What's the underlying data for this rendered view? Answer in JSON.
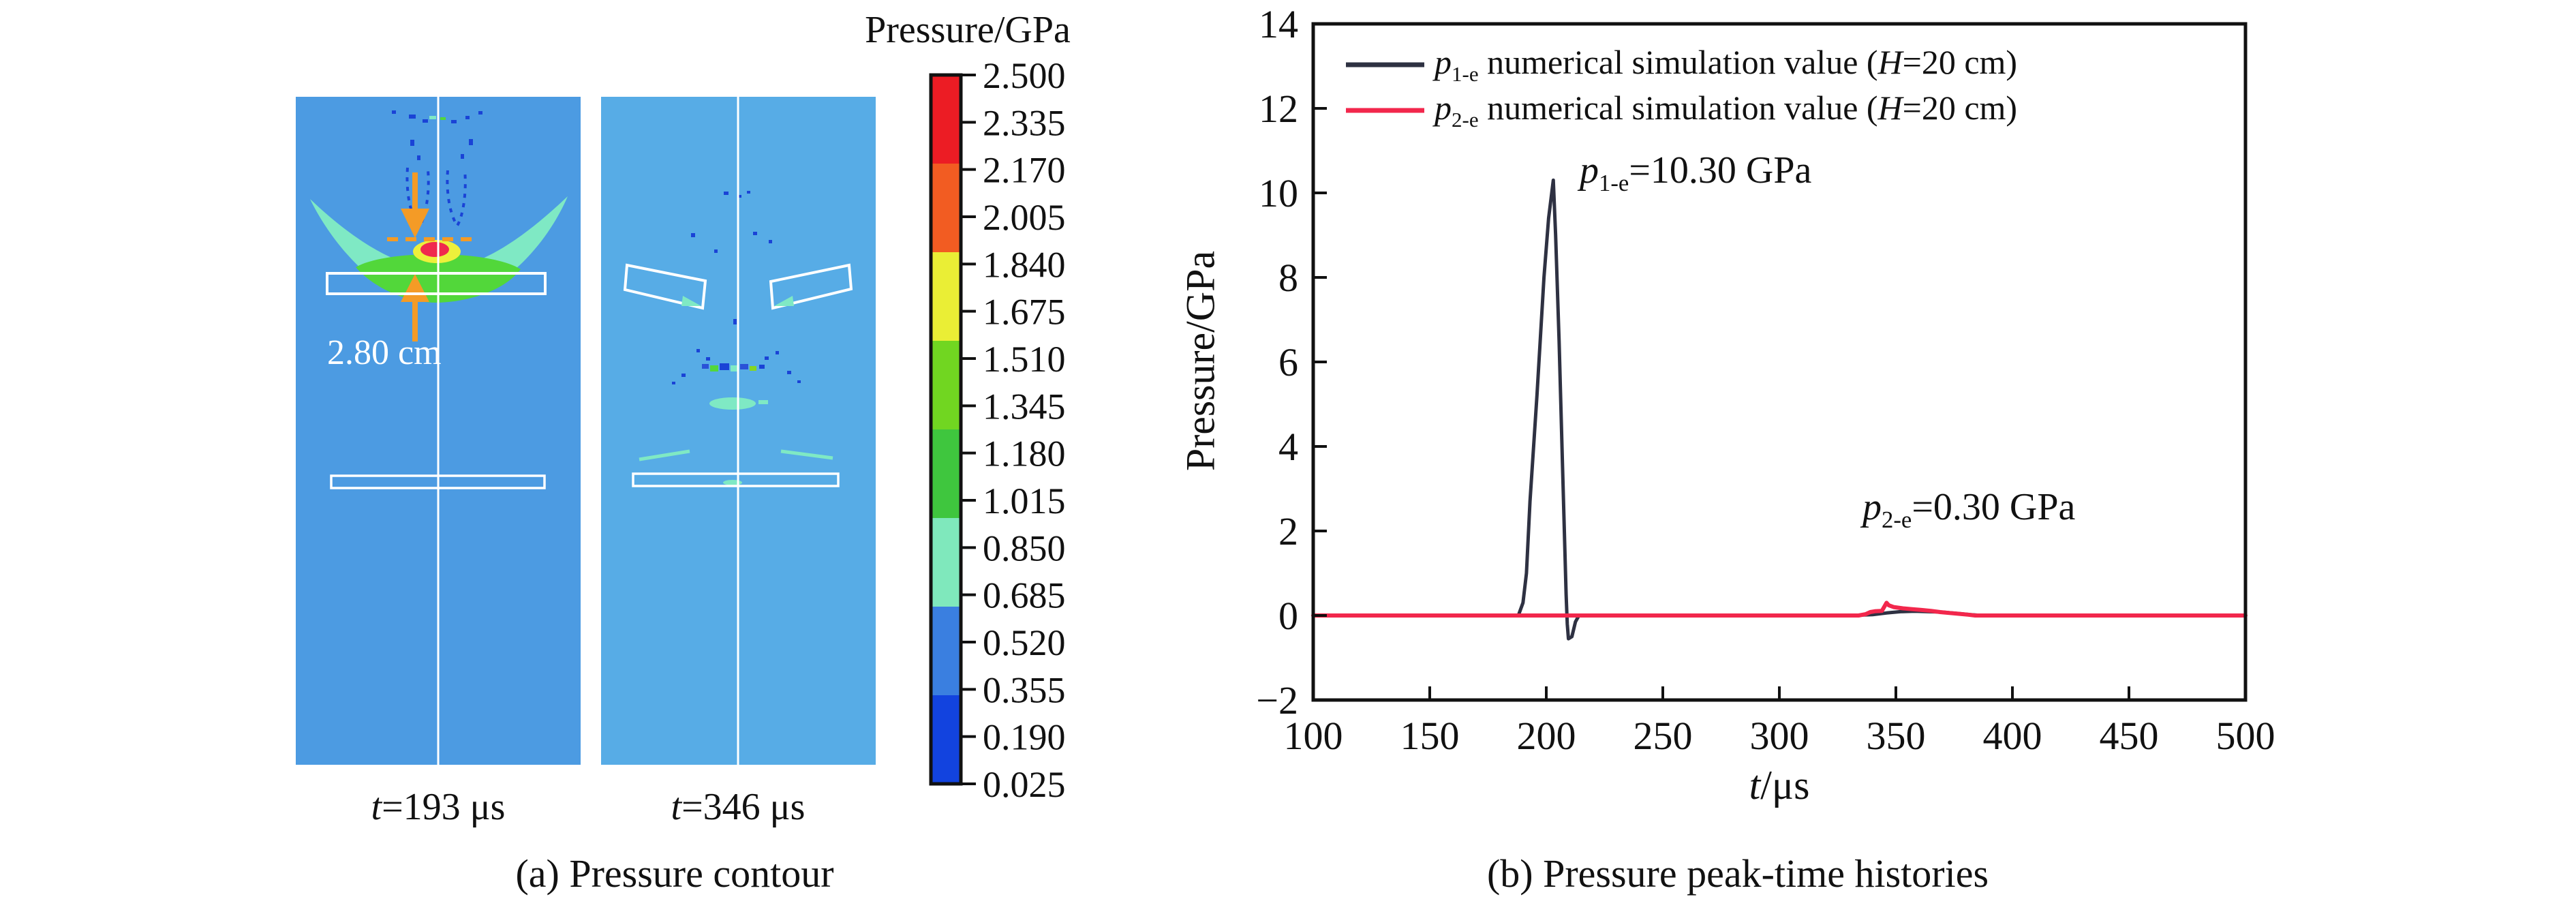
{
  "figure": {
    "panel_a": {
      "caption": "(a) Pressure contour",
      "dimension_label": "2.80 cm",
      "snapshots": [
        {
          "t_var": "t",
          "t_rest": "=193 μs"
        },
        {
          "t_var": "t",
          "t_rest": "=346 μs"
        }
      ],
      "colorbar": {
        "title": "Pressure/GPa",
        "tick_labels": [
          "2.500",
          "2.335",
          "2.170",
          "2.005",
          "1.840",
          "1.675",
          "1.510",
          "1.345",
          "1.180",
          "1.015",
          "0.850",
          "0.685",
          "0.520",
          "0.355",
          "0.190",
          "0.025"
        ],
        "segment_colors": [
          "#EC1C24",
          "#F25C22",
          "#EAEE35",
          "#71D621",
          "#3FC63E",
          "#7FE8BC",
          "#3A7FE0",
          "#1243DF"
        ]
      },
      "contour_colors": {
        "background_left": "#4C9BE2",
        "background_right": "#57ACE6",
        "hotspot_red": "#F0294E",
        "hotspot_yellow": "#EDF03B",
        "lens_green": "#52D73A",
        "wing_mint": "#7FE9C4",
        "plume_blue": "#1A43D6",
        "arrow_orange": "#F49B26"
      }
    },
    "panel_b": {
      "caption": "(b) Pressure peak-time histories",
      "ylabel": "Pressure/GPa",
      "xlabel": {
        "var": "t",
        "rest": "/μs"
      },
      "legend": [
        {
          "sym": "p",
          "sub": "1-e",
          "mid": " numerical simulation value (",
          "hvar": "H",
          "tail": "=20 cm)",
          "color": "#2E3142"
        },
        {
          "sym": "p",
          "sub": "2-e",
          "mid": " numerical simulation value (",
          "hvar": "H",
          "tail": "=20 cm)",
          "color": "#F2274C"
        }
      ],
      "annotations": [
        {
          "sym": "p",
          "sub": "1-e",
          "tail": "=10.30 GPa"
        },
        {
          "sym": "p",
          "sub": "2-e",
          "tail": "=0.30 GPa"
        }
      ]
    }
  },
  "chart_data": {
    "type": "line",
    "title": "Pressure peak-time histories",
    "xlabel": "t/μs",
    "ylabel": "Pressure/GPa",
    "xlim": [
      100,
      500
    ],
    "ylim": [
      -2,
      14
    ],
    "x_ticks": [
      100,
      150,
      200,
      250,
      300,
      350,
      400,
      450,
      500
    ],
    "x_tick_labels": [
      "100",
      "150",
      "200",
      "250",
      "300",
      "350",
      "400",
      "450",
      "500"
    ],
    "y_ticks": [
      -2,
      0,
      2,
      4,
      6,
      8,
      10,
      12,
      14
    ],
    "y_tick_labels": [
      "−2",
      "0",
      "2",
      "4",
      "6",
      "8",
      "10",
      "12",
      "14"
    ],
    "grid": false,
    "legend_position": "top-left",
    "series": [
      {
        "name": "p1-e numerical simulation value (H=20 cm)",
        "color": "#2E3142",
        "peak": {
          "t": 203,
          "value": 10.3
        },
        "points": [
          [
            100,
            0
          ],
          [
            184,
            0
          ],
          [
            188,
            0
          ],
          [
            190,
            0.3
          ],
          [
            191.5,
            1.0
          ],
          [
            193,
            2.7
          ],
          [
            196,
            5.2
          ],
          [
            199,
            8.0
          ],
          [
            201,
            9.4
          ],
          [
            203,
            10.3
          ],
          [
            204,
            9.0
          ],
          [
            205.5,
            6.5
          ],
          [
            207,
            3.5
          ],
          [
            208.5,
            0.5
          ],
          [
            209,
            -0.2
          ],
          [
            209.5,
            -0.55
          ],
          [
            211,
            -0.5
          ],
          [
            212.5,
            -0.15
          ],
          [
            214,
            0
          ],
          [
            330,
            0
          ],
          [
            340,
            0.02
          ],
          [
            346,
            0.06
          ],
          [
            352,
            0.09
          ],
          [
            358,
            0.1
          ],
          [
            364,
            0.09
          ],
          [
            370,
            0.08
          ],
          [
            376,
            0.05
          ],
          [
            382,
            0.02
          ],
          [
            387,
            0
          ],
          [
            500,
            0
          ]
        ]
      },
      {
        "name": "p2-e numerical simulation value (H=20 cm)",
        "color": "#F2274C",
        "peak": {
          "t": 346,
          "value": 0.3
        },
        "points": [
          [
            100,
            0
          ],
          [
            334,
            0
          ],
          [
            337,
            0.03
          ],
          [
            339,
            0.08
          ],
          [
            341,
            0.1
          ],
          [
            344,
            0.11
          ],
          [
            346,
            0.3
          ],
          [
            347,
            0.24
          ],
          [
            349,
            0.2
          ],
          [
            353,
            0.17
          ],
          [
            357,
            0.15
          ],
          [
            361,
            0.13
          ],
          [
            365,
            0.11
          ],
          [
            369,
            0.08
          ],
          [
            373,
            0.06
          ],
          [
            377,
            0.04
          ],
          [
            381,
            0.02
          ],
          [
            384,
            0
          ],
          [
            500,
            0
          ]
        ]
      }
    ],
    "colorbar_data": {
      "title": "Pressure/GPa",
      "max": 2.5,
      "min": 0.025,
      "labels": [
        2.5,
        2.335,
        2.17,
        2.005,
        1.84,
        1.675,
        1.51,
        1.345,
        1.18,
        1.015,
        0.85,
        0.685,
        0.52,
        0.355,
        0.19,
        0.025
      ]
    },
    "contour_snapshots": [
      {
        "time_us": 193,
        "peak_annotation": "2.80 cm"
      },
      {
        "time_us": 346
      }
    ]
  }
}
